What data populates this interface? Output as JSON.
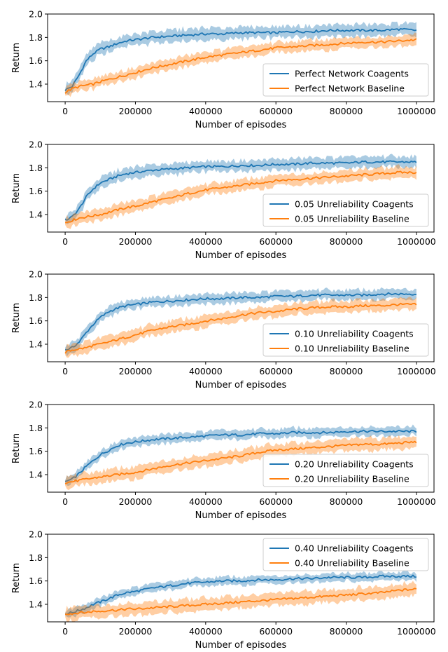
{
  "chart_data": [
    {
      "type": "line",
      "xlabel": "Number of episodes",
      "ylabel": "Return",
      "xlim": [
        -50000,
        1050000
      ],
      "ylim": [
        1.25,
        2.0
      ],
      "xticks": [
        0,
        200000,
        400000,
        600000,
        800000,
        1000000
      ],
      "xtick_labels": [
        "0",
        "200000",
        "400000",
        "600000",
        "800000",
        "1000000"
      ],
      "yticks": [
        1.4,
        1.6,
        1.8,
        2.0
      ],
      "ytick_labels": [
        "1.4",
        "1.6",
        "1.8",
        "2.0"
      ],
      "legend_position": "lower right",
      "series": [
        {
          "name": "Perfect Network Coagents",
          "color": "#1f77b4",
          "x": [
            0,
            20000,
            40000,
            60000,
            80000,
            100000,
            125000,
            150000,
            175000,
            200000,
            250000,
            300000,
            350000,
            400000,
            450000,
            500000,
            550000,
            600000,
            650000,
            700000,
            750000,
            800000,
            850000,
            900000,
            950000,
            1000000
          ],
          "y": [
            1.35,
            1.38,
            1.48,
            1.6,
            1.66,
            1.7,
            1.72,
            1.75,
            1.77,
            1.78,
            1.8,
            1.81,
            1.82,
            1.83,
            1.83,
            1.84,
            1.84,
            1.84,
            1.85,
            1.85,
            1.86,
            1.86,
            1.86,
            1.86,
            1.87,
            1.86
          ],
          "band": [
            0.02,
            0.02,
            0.03,
            0.03,
            0.03,
            0.04,
            0.04,
            0.03,
            0.03,
            0.03,
            0.02,
            0.02,
            0.02,
            0.02,
            0.02,
            0.02,
            0.02,
            0.02,
            0.02,
            0.02,
            0.02,
            0.02,
            0.02,
            0.02,
            0.03,
            0.03
          ]
        },
        {
          "name": "Perfect Network Baseline",
          "color": "#ff7f0e",
          "x": [
            0,
            20000,
            40000,
            60000,
            80000,
            100000,
            125000,
            150000,
            175000,
            200000,
            250000,
            300000,
            350000,
            400000,
            450000,
            500000,
            550000,
            600000,
            650000,
            700000,
            750000,
            800000,
            850000,
            900000,
            950000,
            1000000
          ],
          "y": [
            1.33,
            1.36,
            1.38,
            1.39,
            1.4,
            1.42,
            1.44,
            1.46,
            1.48,
            1.5,
            1.54,
            1.57,
            1.6,
            1.63,
            1.65,
            1.67,
            1.69,
            1.71,
            1.72,
            1.73,
            1.74,
            1.75,
            1.76,
            1.76,
            1.77,
            1.78
          ]
        }
      ]
    },
    {
      "type": "line",
      "xlabel": "Number of episodes",
      "ylabel": "Return",
      "xlim": [
        -50000,
        1050000
      ],
      "ylim": [
        1.25,
        2.0
      ],
      "xticks": [
        0,
        200000,
        400000,
        600000,
        800000,
        1000000
      ],
      "xtick_labels": [
        "0",
        "200000",
        "400000",
        "600000",
        "800000",
        "1000000"
      ],
      "yticks": [
        1.4,
        1.6,
        1.8,
        2.0
      ],
      "ytick_labels": [
        "1.4",
        "1.6",
        "1.8",
        "2.0"
      ],
      "legend_position": "lower right",
      "series": [
        {
          "name": "0.05 Unreliability Coagents",
          "color": "#1f77b4",
          "x": [
            0,
            20000,
            40000,
            60000,
            80000,
            100000,
            125000,
            150000,
            175000,
            200000,
            250000,
            300000,
            350000,
            400000,
            450000,
            500000,
            550000,
            600000,
            650000,
            700000,
            750000,
            800000,
            850000,
            900000,
            950000,
            1000000
          ],
          "y": [
            1.35,
            1.38,
            1.45,
            1.55,
            1.62,
            1.67,
            1.7,
            1.73,
            1.75,
            1.76,
            1.78,
            1.79,
            1.8,
            1.81,
            1.81,
            1.82,
            1.82,
            1.83,
            1.83,
            1.84,
            1.84,
            1.84,
            1.85,
            1.85,
            1.85,
            1.85
          ]
        },
        {
          "name": "0.05 Unreliability Baseline",
          "color": "#ff7f0e",
          "x": [
            0,
            20000,
            40000,
            60000,
            80000,
            100000,
            125000,
            150000,
            175000,
            200000,
            250000,
            300000,
            350000,
            400000,
            450000,
            500000,
            550000,
            600000,
            650000,
            700000,
            750000,
            800000,
            850000,
            900000,
            950000,
            1000000
          ],
          "y": [
            1.33,
            1.35,
            1.37,
            1.38,
            1.39,
            1.4,
            1.42,
            1.44,
            1.46,
            1.47,
            1.51,
            1.54,
            1.58,
            1.61,
            1.63,
            1.65,
            1.67,
            1.69,
            1.7,
            1.71,
            1.72,
            1.73,
            1.74,
            1.75,
            1.76,
            1.76
          ]
        }
      ]
    },
    {
      "type": "line",
      "xlabel": "Number of episodes",
      "ylabel": "Return",
      "xlim": [
        -50000,
        1050000
      ],
      "ylim": [
        1.25,
        2.0
      ],
      "xticks": [
        0,
        200000,
        400000,
        600000,
        800000,
        1000000
      ],
      "xtick_labels": [
        "0",
        "200000",
        "400000",
        "600000",
        "800000",
        "1000000"
      ],
      "yticks": [
        1.4,
        1.6,
        1.8,
        2.0
      ],
      "ytick_labels": [
        "1.4",
        "1.6",
        "1.8",
        "2.0"
      ],
      "legend_position": "lower right",
      "series": [
        {
          "name": "0.10 Unreliability Coagents",
          "color": "#1f77b4",
          "x": [
            0,
            20000,
            40000,
            60000,
            80000,
            100000,
            125000,
            150000,
            175000,
            200000,
            250000,
            300000,
            350000,
            400000,
            450000,
            500000,
            550000,
            600000,
            650000,
            700000,
            750000,
            800000,
            850000,
            900000,
            950000,
            1000000
          ],
          "y": [
            1.35,
            1.37,
            1.42,
            1.5,
            1.57,
            1.63,
            1.68,
            1.71,
            1.73,
            1.74,
            1.76,
            1.77,
            1.78,
            1.79,
            1.79,
            1.8,
            1.8,
            1.81,
            1.81,
            1.82,
            1.82,
            1.82,
            1.82,
            1.83,
            1.83,
            1.83
          ]
        },
        {
          "name": "0.10 Unreliability Baseline",
          "color": "#ff7f0e",
          "x": [
            0,
            20000,
            40000,
            60000,
            80000,
            100000,
            125000,
            150000,
            175000,
            200000,
            250000,
            300000,
            350000,
            400000,
            450000,
            500000,
            550000,
            600000,
            650000,
            700000,
            750000,
            800000,
            850000,
            900000,
            950000,
            1000000
          ],
          "y": [
            1.33,
            1.35,
            1.36,
            1.37,
            1.39,
            1.4,
            1.42,
            1.44,
            1.46,
            1.48,
            1.52,
            1.55,
            1.57,
            1.6,
            1.62,
            1.65,
            1.67,
            1.68,
            1.7,
            1.71,
            1.72,
            1.72,
            1.73,
            1.73,
            1.74,
            1.74
          ]
        }
      ]
    },
    {
      "type": "line",
      "xlabel": "Number of episodes",
      "ylabel": "Return",
      "xlim": [
        -50000,
        1050000
      ],
      "ylim": [
        1.25,
        2.0
      ],
      "xticks": [
        0,
        200000,
        400000,
        600000,
        800000,
        1000000
      ],
      "xtick_labels": [
        "0",
        "200000",
        "400000",
        "600000",
        "800000",
        "1000000"
      ],
      "yticks": [
        1.4,
        1.6,
        1.8,
        2.0
      ],
      "ytick_labels": [
        "1.4",
        "1.6",
        "1.8",
        "2.0"
      ],
      "legend_position": "lower right",
      "series": [
        {
          "name": "0.20 Unreliability Coagents",
          "color": "#1f77b4",
          "x": [
            0,
            20000,
            40000,
            60000,
            80000,
            100000,
            125000,
            150000,
            175000,
            200000,
            250000,
            300000,
            350000,
            400000,
            450000,
            500000,
            550000,
            600000,
            650000,
            700000,
            750000,
            800000,
            850000,
            900000,
            950000,
            1000000
          ],
          "y": [
            1.34,
            1.36,
            1.41,
            1.47,
            1.52,
            1.57,
            1.61,
            1.65,
            1.67,
            1.68,
            1.7,
            1.71,
            1.72,
            1.73,
            1.74,
            1.74,
            1.75,
            1.75,
            1.76,
            1.76,
            1.76,
            1.77,
            1.77,
            1.77,
            1.77,
            1.77
          ]
        },
        {
          "name": "0.20 Unreliability Baseline",
          "color": "#ff7f0e",
          "x": [
            0,
            20000,
            40000,
            60000,
            80000,
            100000,
            125000,
            150000,
            175000,
            200000,
            250000,
            300000,
            350000,
            400000,
            450000,
            500000,
            550000,
            600000,
            650000,
            700000,
            750000,
            800000,
            850000,
            900000,
            950000,
            1000000
          ],
          "y": [
            1.33,
            1.34,
            1.35,
            1.36,
            1.37,
            1.38,
            1.39,
            1.4,
            1.41,
            1.42,
            1.45,
            1.48,
            1.5,
            1.52,
            1.54,
            1.56,
            1.59,
            1.61,
            1.62,
            1.63,
            1.64,
            1.65,
            1.66,
            1.66,
            1.67,
            1.68
          ]
        }
      ]
    },
    {
      "type": "line",
      "xlabel": "Number of episodes",
      "ylabel": "Return",
      "xlim": [
        -50000,
        1050000
      ],
      "ylim": [
        1.25,
        2.0
      ],
      "xticks": [
        0,
        200000,
        400000,
        600000,
        800000,
        1000000
      ],
      "xtick_labels": [
        "0",
        "200000",
        "400000",
        "600000",
        "800000",
        "1000000"
      ],
      "yticks": [
        1.4,
        1.6,
        1.8,
        2.0
      ],
      "ytick_labels": [
        "1.4",
        "1.6",
        "1.8",
        "2.0"
      ],
      "legend_position": "upper right",
      "series": [
        {
          "name": "0.40 Unreliability Coagents",
          "color": "#1f77b4",
          "x": [
            0,
            20000,
            40000,
            60000,
            80000,
            100000,
            125000,
            150000,
            175000,
            200000,
            250000,
            300000,
            350000,
            400000,
            450000,
            500000,
            550000,
            600000,
            650000,
            700000,
            750000,
            800000,
            850000,
            900000,
            950000,
            1000000
          ],
          "y": [
            1.32,
            1.33,
            1.35,
            1.37,
            1.4,
            1.42,
            1.45,
            1.48,
            1.5,
            1.51,
            1.54,
            1.56,
            1.58,
            1.59,
            1.6,
            1.6,
            1.61,
            1.61,
            1.62,
            1.62,
            1.63,
            1.63,
            1.63,
            1.64,
            1.64,
            1.64
          ]
        },
        {
          "name": "0.40 Unreliability Baseline",
          "color": "#ff7f0e",
          "x": [
            0,
            20000,
            40000,
            60000,
            80000,
            100000,
            125000,
            150000,
            175000,
            200000,
            250000,
            300000,
            350000,
            400000,
            450000,
            500000,
            550000,
            600000,
            650000,
            700000,
            750000,
            800000,
            850000,
            900000,
            950000,
            1000000
          ],
          "y": [
            1.32,
            1.32,
            1.33,
            1.33,
            1.34,
            1.34,
            1.35,
            1.35,
            1.36,
            1.36,
            1.37,
            1.38,
            1.39,
            1.4,
            1.41,
            1.42,
            1.43,
            1.44,
            1.45,
            1.46,
            1.47,
            1.48,
            1.49,
            1.5,
            1.52,
            1.53
          ]
        }
      ]
    }
  ]
}
